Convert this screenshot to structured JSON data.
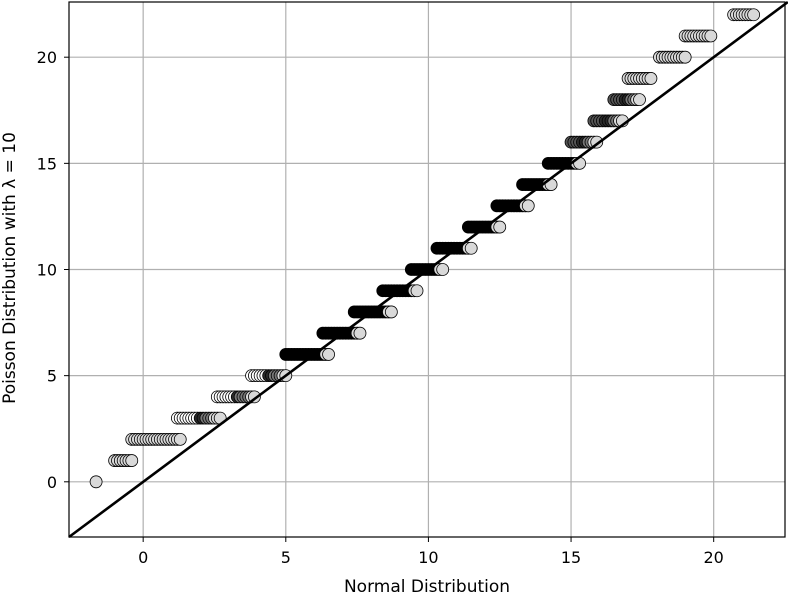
{
  "chart_data": {
    "type": "scatter",
    "xlabel": "Normal Distribution",
    "ylabel": "Poisson Distribution with λ = 10",
    "xlim": [
      -2.6,
      22.5
    ],
    "ylim": [
      -2.6,
      22.6
    ],
    "xticks": [
      0,
      5,
      10,
      15,
      20
    ],
    "yticks": [
      0,
      5,
      10,
      15,
      20
    ],
    "grid": true,
    "reference_line": {
      "from": [
        -2.6,
        -2.6
      ],
      "to": [
        22.6,
        22.6
      ],
      "color": "#000000"
    },
    "marker_face_light": "#d9d9d9",
    "marker_edge": "#000000",
    "levels": [
      {
        "y": 0,
        "x_min": -1.65,
        "x_max": -1.65
      },
      {
        "y": 1,
        "x_min": -1.0,
        "x_max": -0.4
      },
      {
        "y": 2,
        "x_min": -0.4,
        "x_max": 1.3
      },
      {
        "y": 3,
        "x_min": 1.2,
        "x_max": 2.7
      },
      {
        "y": 4,
        "x_min": 2.6,
        "x_max": 3.9
      },
      {
        "y": 5,
        "x_min": 3.8,
        "x_max": 5.0
      },
      {
        "y": 6,
        "x_min": 5.0,
        "x_max": 6.5
      },
      {
        "y": 7,
        "x_min": 6.3,
        "x_max": 7.6
      },
      {
        "y": 8,
        "x_min": 7.4,
        "x_max": 8.7
      },
      {
        "y": 9,
        "x_min": 8.4,
        "x_max": 9.6
      },
      {
        "y": 10,
        "x_min": 9.4,
        "x_max": 10.5
      },
      {
        "y": 11,
        "x_min": 10.3,
        "x_max": 11.5
      },
      {
        "y": 12,
        "x_min": 11.4,
        "x_max": 12.5
      },
      {
        "y": 13,
        "x_min": 12.4,
        "x_max": 13.5
      },
      {
        "y": 14,
        "x_min": 13.3,
        "x_max": 14.3
      },
      {
        "y": 15,
        "x_min": 14.2,
        "x_max": 15.3
      },
      {
        "y": 16,
        "x_min": 15.0,
        "x_max": 15.9
      },
      {
        "y": 17,
        "x_min": 15.8,
        "x_max": 16.8
      },
      {
        "y": 18,
        "x_min": 16.5,
        "x_max": 17.4
      },
      {
        "y": 19,
        "x_min": 17.0,
        "x_max": 17.8
      },
      {
        "y": 20,
        "x_min": 18.1,
        "x_max": 19.0
      },
      {
        "y": 21,
        "x_min": 19.0,
        "x_max": 19.9
      },
      {
        "y": 22,
        "x_min": 20.7,
        "x_max": 21.4
      }
    ]
  }
}
